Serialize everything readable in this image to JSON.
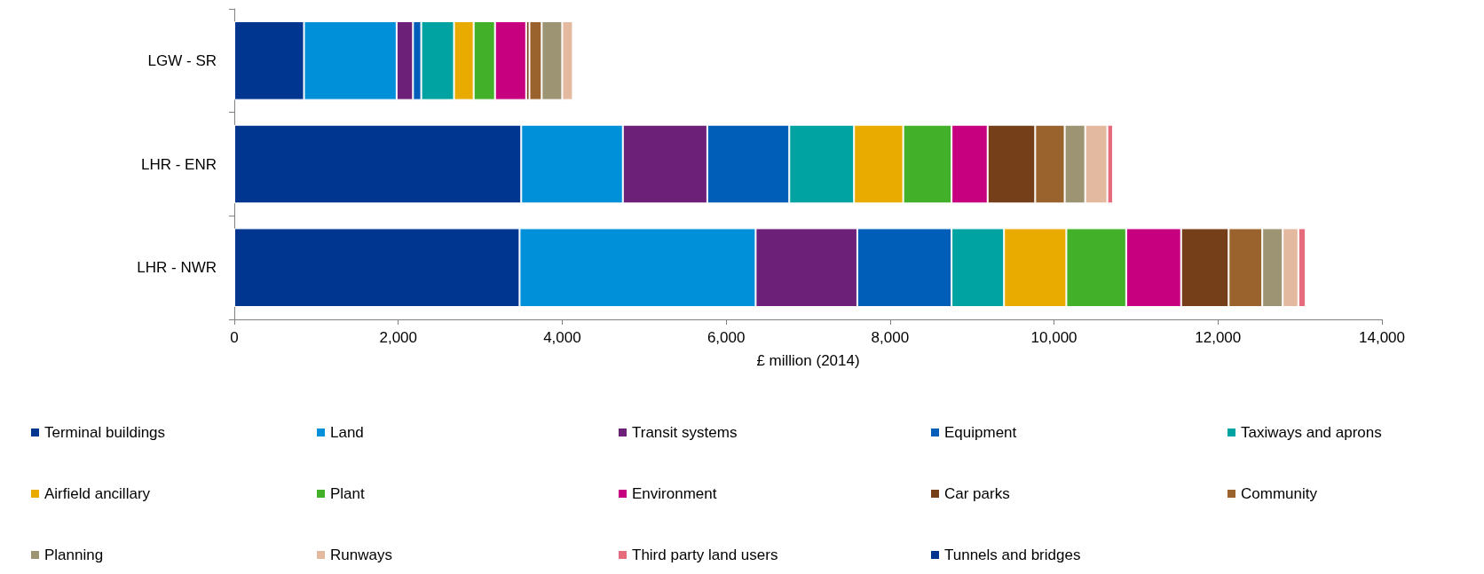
{
  "chart_data": {
    "type": "bar",
    "orientation": "horizontal",
    "stacked": true,
    "xlabel": "£ million (2014)",
    "categories": [
      "LGW - SR",
      "LHR - ENR",
      "LHR - NWR"
    ],
    "xlim": [
      0,
      14000
    ],
    "xticks": [
      0,
      {
        "value": 2000,
        "label": "2,000"
      },
      {
        "value": 4000,
        "label": "4,000"
      },
      {
        "value": 6000,
        "label": "6,000"
      },
      {
        "value": 8000,
        "label": "8,000"
      },
      {
        "value": 10000,
        "label": "10,000"
      },
      {
        "value": 12000,
        "label": "12,000"
      },
      {
        "value": 14000,
        "label": "14,000"
      }
    ],
    "grid": false,
    "legend": "bottom",
    "series": [
      {
        "name": "Terminal buildings",
        "color": "#003590",
        "values": [
          850,
          3500,
          3480
        ]
      },
      {
        "name": "Land",
        "color": "#0090da",
        "values": [
          1130,
          1240,
          2880
        ]
      },
      {
        "name": "Transit systems",
        "color": "#6d2077",
        "values": [
          200,
          1030,
          1240
        ]
      },
      {
        "name": "Equipment",
        "color": "#005eb8",
        "values": [
          100,
          1000,
          1150
        ]
      },
      {
        "name": "Taxiways and aprons",
        "color": "#00a3a1",
        "values": [
          400,
          790,
          640
        ]
      },
      {
        "name": "Airfield ancillary",
        "color": "#eaab00",
        "values": [
          240,
          600,
          760
        ]
      },
      {
        "name": "Plant",
        "color": "#43b02a",
        "values": [
          260,
          590,
          730
        ]
      },
      {
        "name": "Environment",
        "color": "#c6007e",
        "values": [
          380,
          440,
          670
        ]
      },
      {
        "name": "Car parks",
        "color": "#753f19",
        "values": [
          40,
          580,
          580
        ]
      },
      {
        "name": "Community",
        "color": "#9a632e",
        "values": [
          150,
          360,
          410
        ]
      },
      {
        "name": "Planning",
        "color": "#9d9474",
        "values": [
          250,
          250,
          250
        ]
      },
      {
        "name": "Runways",
        "color": "#e3b9a0",
        "values": [
          130,
          270,
          190
        ]
      },
      {
        "name": "Third party land users",
        "color": "#e66b7c",
        "values": [
          0,
          70,
          90
        ]
      },
      {
        "name": "Tunnels and bridges",
        "color": "#00338d",
        "values": [
          0,
          0,
          0
        ]
      }
    ]
  }
}
